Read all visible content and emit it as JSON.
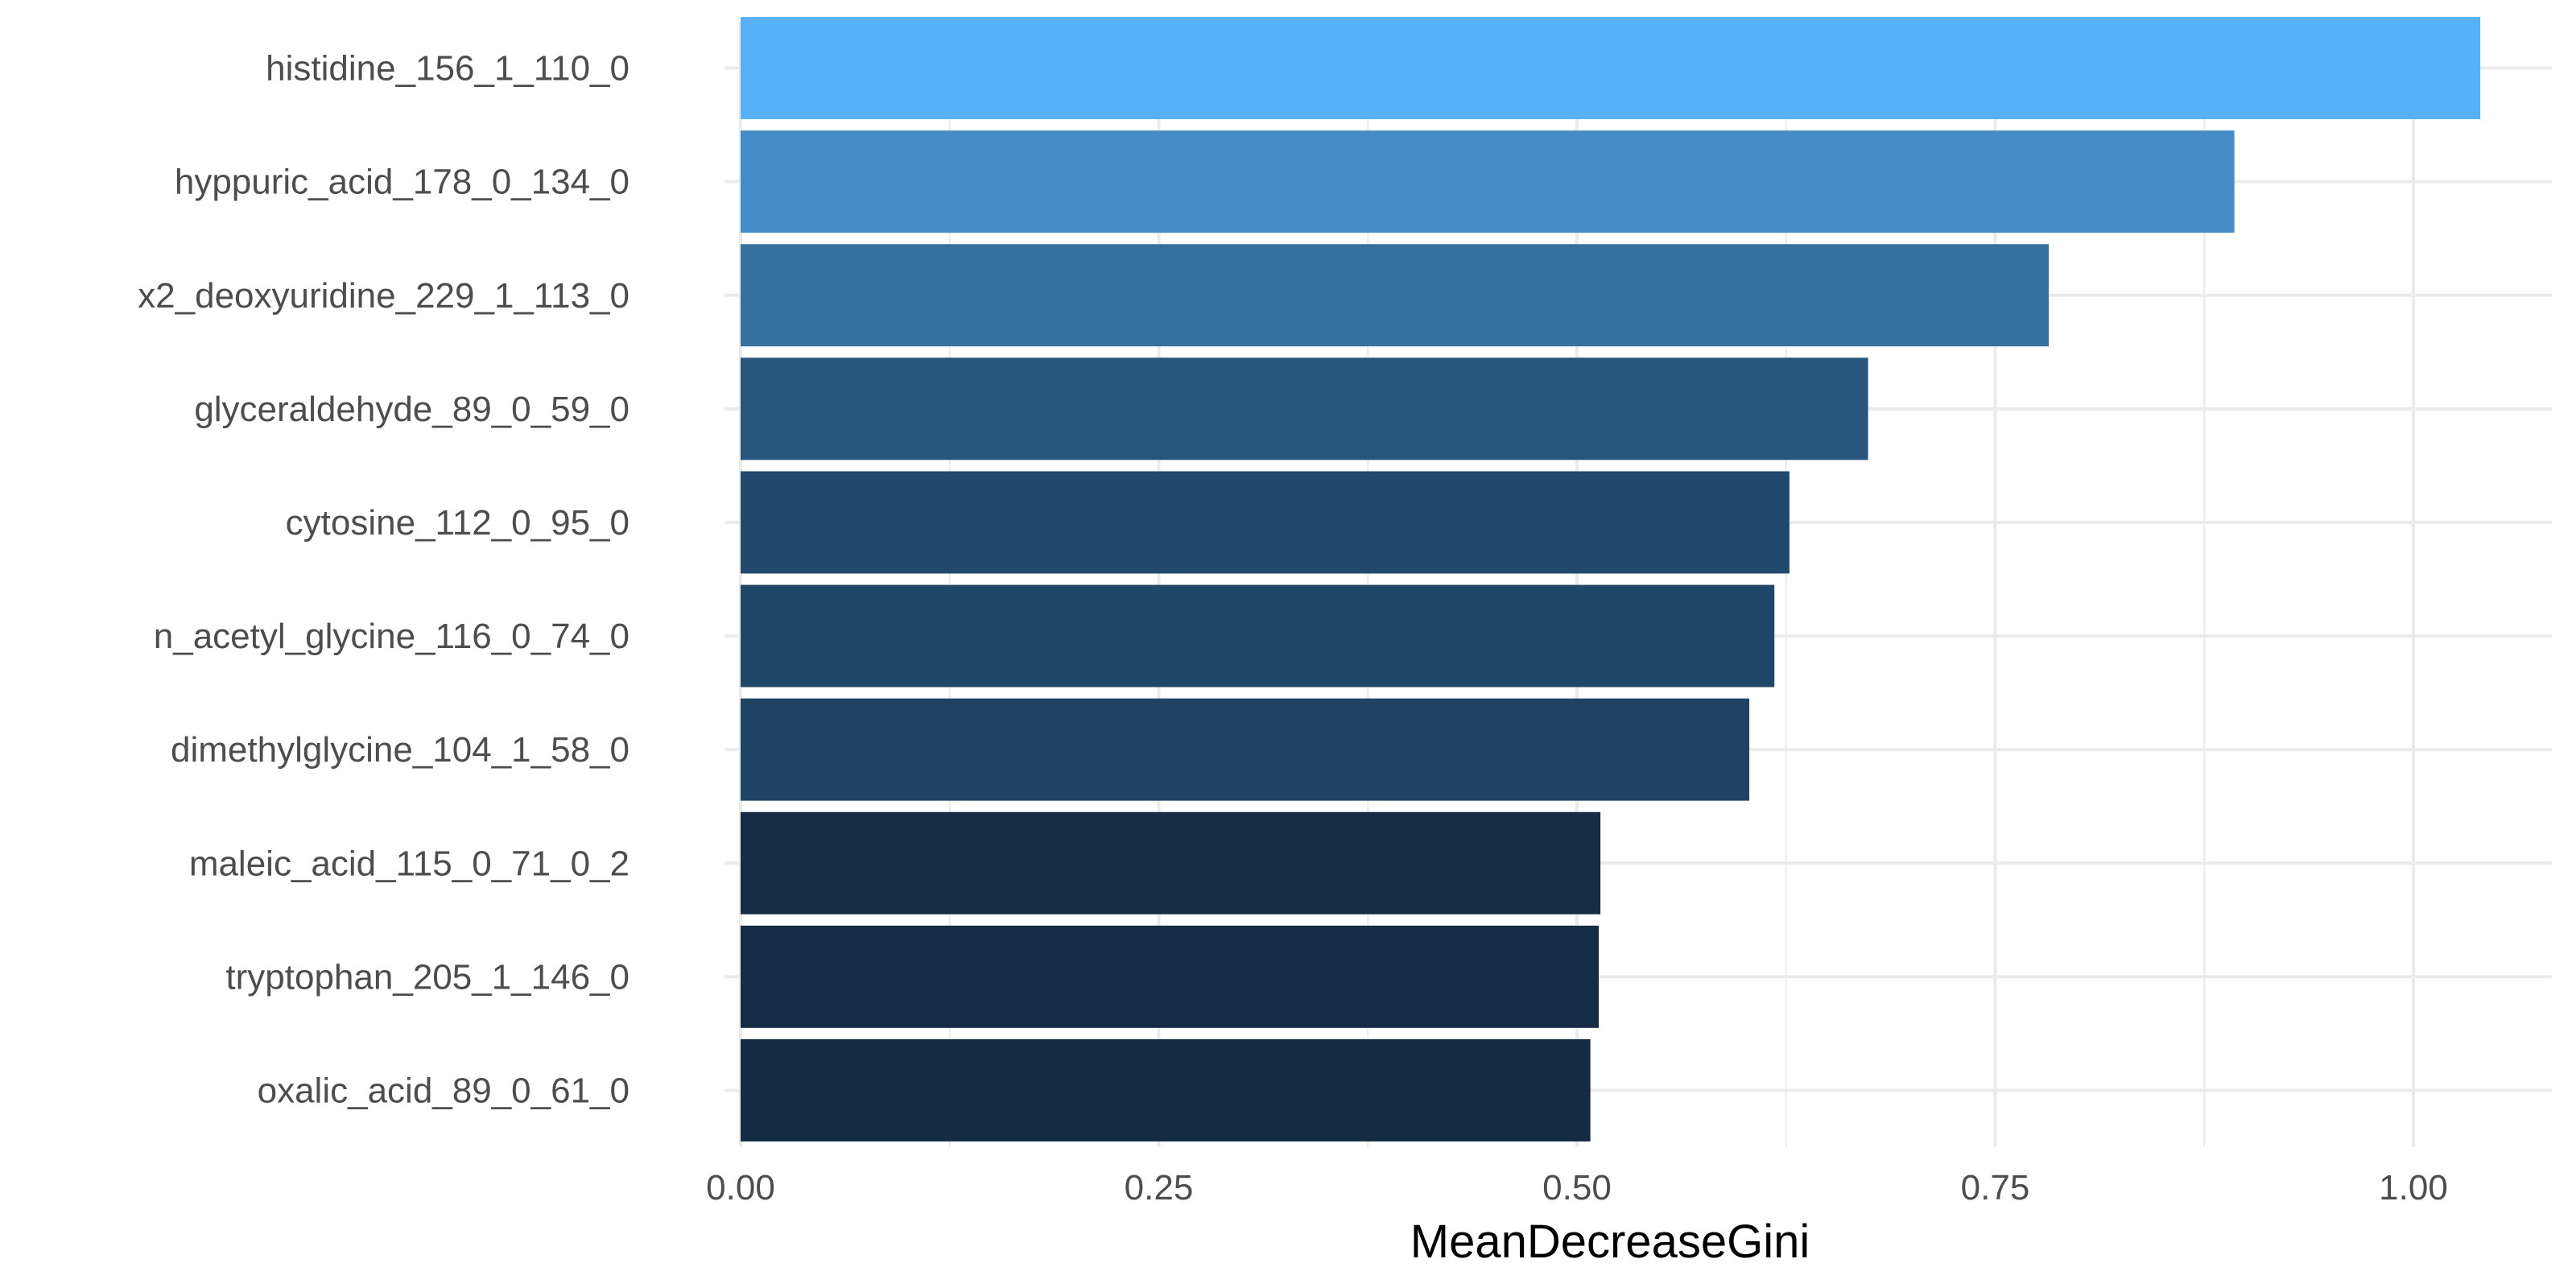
{
  "chart_data": {
    "type": "bar",
    "orientation": "horizontal",
    "title": "",
    "xlabel": "MeanDecreaseGini",
    "ylabel": "",
    "categories": [
      "histidine_156_1_110_0",
      "hyppuric_acid_178_0_134_0",
      "x2_deoxyuridine_229_1_113_0",
      "glyceraldehyde_89_0_59_0",
      "cytosine_112_0_95_0",
      "n_acetyl_glycine_116_0_74_0",
      "dimethylglycine_104_1_58_0",
      "maleic_acid_115_0_71_0_2",
      "tryptophan_205_1_146_0",
      "oxalic_acid_89_0_61_0"
    ],
    "values": [
      1.04,
      0.893,
      0.782,
      0.674,
      0.627,
      0.618,
      0.603,
      0.514,
      0.513,
      0.508
    ],
    "xlim": [
      0,
      1.06
    ],
    "x_ticks": [
      "0.00",
      "0.25",
      "0.50",
      "0.75",
      "1.00"
    ],
    "grid": true,
    "legend": "none",
    "colors": {
      "bar_low": "#132B43",
      "bar_high": "#56B1F7",
      "grid": "#ebebeb",
      "tick_text": "#4d4d4d",
      "title_text": "#000000"
    }
  }
}
